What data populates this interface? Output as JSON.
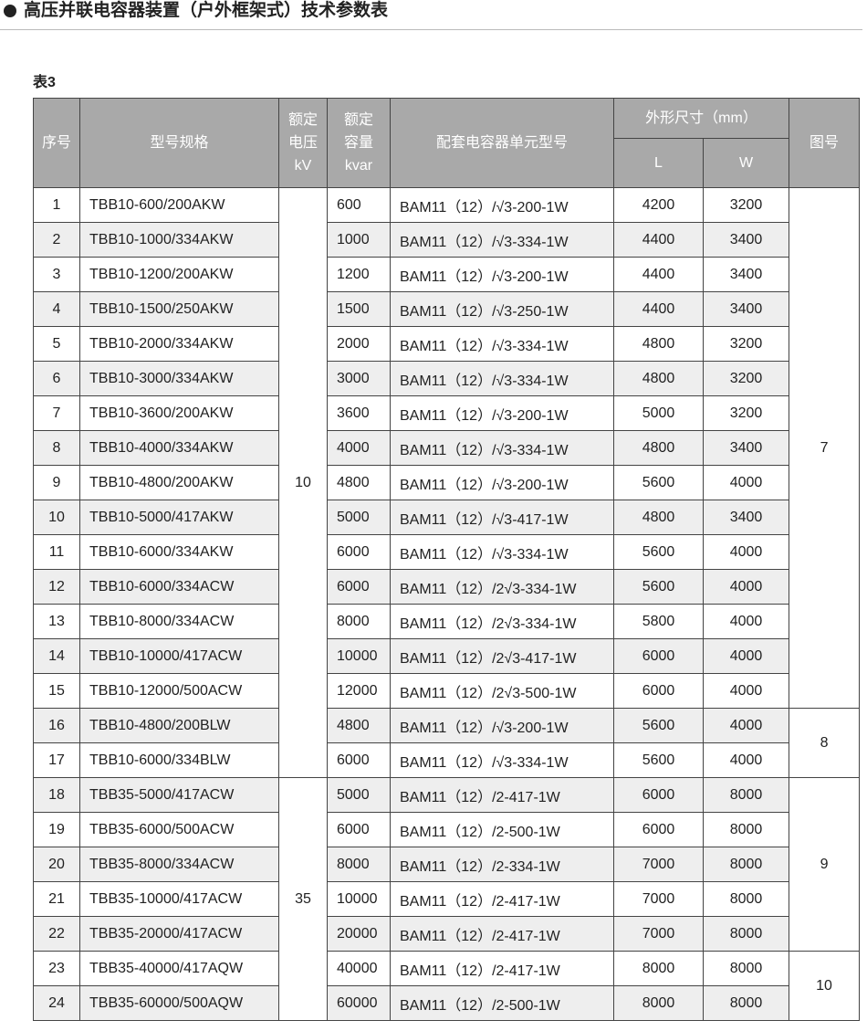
{
  "title": "高压并联电容器装置（户外框架式）技术参数表",
  "table_label": "表3",
  "header": {
    "no": "序号",
    "model": "型号规格",
    "voltage": [
      "额定",
      "电压",
      "kV"
    ],
    "capacity": [
      "额定",
      "容量",
      "kvar"
    ],
    "unit": "配套电容器单元型号",
    "dims": "外形尺寸（mm）",
    "L": "L",
    "W": "W",
    "figure": "图号"
  },
  "rows": [
    {
      "no": "1",
      "model": "TBB10-600/200AKW",
      "voltage": "10",
      "capacity": "600",
      "unit": "BAM11（12）/√3-200-1W",
      "L": "4200",
      "W": "3200",
      "figure": "7"
    },
    {
      "no": "2",
      "model": "TBB10-1000/334AKW",
      "capacity": "1000",
      "unit": "BAM11（12）/√3-334-1W",
      "L": "4400",
      "W": "3400"
    },
    {
      "no": "3",
      "model": "TBB10-1200/200AKW",
      "capacity": "1200",
      "unit": "BAM11（12）/√3-200-1W",
      "L": "4400",
      "W": "3400"
    },
    {
      "no": "4",
      "model": "TBB10-1500/250AKW",
      "capacity": "1500",
      "unit": "BAM11（12）/√3-250-1W",
      "L": "4400",
      "W": "3400"
    },
    {
      "no": "5",
      "model": "TBB10-2000/334AKW",
      "capacity": "2000",
      "unit": "BAM11（12）/√3-334-1W",
      "L": "4800",
      "W": "3200"
    },
    {
      "no": "6",
      "model": "TBB10-3000/334AKW",
      "capacity": "3000",
      "unit": "BAM11（12）/√3-334-1W",
      "L": "4800",
      "W": "3200"
    },
    {
      "no": "7",
      "model": "TBB10-3600/200AKW",
      "capacity": "3600",
      "unit": "BAM11（12）/√3-200-1W",
      "L": "5000",
      "W": "3200"
    },
    {
      "no": "8",
      "model": "TBB10-4000/334AKW",
      "capacity": "4000",
      "unit": "BAM11（12）/√3-334-1W",
      "L": "4800",
      "W": "3400"
    },
    {
      "no": "9",
      "model": "TBB10-4800/200AKW",
      "capacity": "4800",
      "unit": "BAM11（12）/√3-200-1W",
      "L": "5600",
      "W": "4000"
    },
    {
      "no": "10",
      "model": "TBB10-5000/417AKW",
      "capacity": "5000",
      "unit": "BAM11（12）/√3-417-1W",
      "L": "4800",
      "W": "3400"
    },
    {
      "no": "11",
      "model": "TBB10-6000/334AKW",
      "capacity": "6000",
      "unit": "BAM11（12）/√3-334-1W",
      "L": "5600",
      "W": "4000"
    },
    {
      "no": "12",
      "model": "TBB10-6000/334ACW",
      "capacity": "6000",
      "unit": "BAM11（12）/2√3-334-1W",
      "L": "5600",
      "W": "4000"
    },
    {
      "no": "13",
      "model": "TBB10-8000/334ACW",
      "capacity": "8000",
      "unit": "BAM11（12）/2√3-334-1W",
      "L": "5800",
      "W": "4000"
    },
    {
      "no": "14",
      "model": "TBB10-10000/417ACW",
      "capacity": "10000",
      "unit": "BAM11（12）/2√3-417-1W",
      "L": "6000",
      "W": "4000"
    },
    {
      "no": "15",
      "model": "TBB10-12000/500ACW",
      "capacity": "12000",
      "unit": "BAM11（12）/2√3-500-1W",
      "L": "6000",
      "W": "4000"
    },
    {
      "no": "16",
      "model": "TBB10-4800/200BLW",
      "capacity": "4800",
      "unit": "BAM11（12）/√3-200-1W",
      "L": "5600",
      "W": "4000",
      "figure": "8"
    },
    {
      "no": "17",
      "model": "TBB10-6000/334BLW",
      "capacity": "6000",
      "unit": "BAM11（12）/√3-334-1W",
      "L": "5600",
      "W": "4000"
    },
    {
      "no": "18",
      "model": "TBB35-5000/417ACW",
      "voltage": "35",
      "capacity": "5000",
      "unit": "BAM11（12）/2-417-1W",
      "L": "6000",
      "W": "8000",
      "figure": "9"
    },
    {
      "no": "19",
      "model": "TBB35-6000/500ACW",
      "capacity": "6000",
      "unit": "BAM11（12）/2-500-1W",
      "L": "6000",
      "W": "8000"
    },
    {
      "no": "20",
      "model": "TBB35-8000/334ACW",
      "capacity": "8000",
      "unit": "BAM11（12）/2-334-1W",
      "L": "7000",
      "W": "8000"
    },
    {
      "no": "21",
      "model": "TBB35-10000/417ACW",
      "capacity": "10000",
      "unit": "BAM11（12）/2-417-1W",
      "L": "7000",
      "W": "8000"
    },
    {
      "no": "22",
      "model": "TBB35-20000/417ACW",
      "capacity": "20000",
      "unit": "BAM11（12）/2-417-1W",
      "L": "7000",
      "W": "8000"
    },
    {
      "no": "23",
      "model": "TBB35-40000/417AQW",
      "capacity": "40000",
      "unit": "BAM11（12）/2-417-1W",
      "L": "8000",
      "W": "8000",
      "figure": "10"
    },
    {
      "no": "24",
      "model": "TBB35-60000/500AQW",
      "capacity": "60000",
      "unit": "BAM11（12）/2-500-1W",
      "L": "8000",
      "W": "8000"
    }
  ]
}
